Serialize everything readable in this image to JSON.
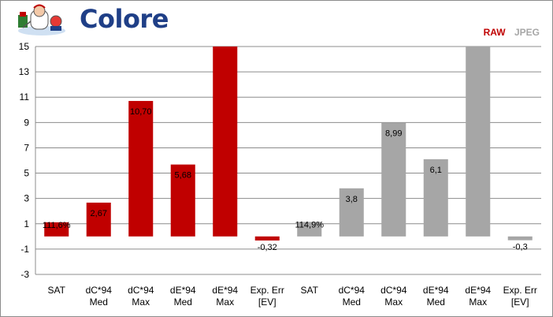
{
  "header": {
    "title": "Colore"
  },
  "legend": {
    "placement": "top-right",
    "items": [
      {
        "name": "RAW",
        "color": "#c00000"
      },
      {
        "name": "JPEG",
        "color": "#a6a6a6"
      }
    ]
  },
  "chart_data": {
    "type": "bar",
    "title": "Colore",
    "xlabel": "",
    "ylabel": "",
    "ylim": [
      -3,
      15
    ],
    "yticks": [
      "15",
      "13",
      "11",
      "9",
      "7",
      "5",
      "3",
      "1",
      "-1",
      "-3"
    ],
    "grid": true,
    "categories": [
      [
        "SAT",
        ""
      ],
      [
        "dC*94",
        "Med"
      ],
      [
        "dC*94",
        "Max"
      ],
      [
        "dE*94",
        "Med"
      ],
      [
        "dE*94",
        "Max"
      ],
      [
        "Exp. Err",
        "[EV]"
      ],
      [
        "SAT",
        ""
      ],
      [
        "dC*94",
        "Med"
      ],
      [
        "dC*94",
        "Max"
      ],
      [
        "dE*94",
        "Med"
      ],
      [
        "dE*94",
        "Max"
      ],
      [
        "Exp. Err",
        "[EV]"
      ]
    ],
    "values": [
      1.116,
      2.67,
      10.7,
      5.68,
      15,
      -0.32,
      1.149,
      3.8,
      8.99,
      6.1,
      15,
      -0.3
    ],
    "data_labels": [
      "111,6%",
      "2,67",
      "10,70",
      "5,68",
      "",
      "-0,32",
      "114,9%",
      "3,8",
      "8,99",
      "6,1",
      "",
      "-0,3"
    ],
    "series_index": [
      0,
      0,
      0,
      0,
      0,
      0,
      1,
      1,
      1,
      1,
      1,
      1
    ]
  }
}
